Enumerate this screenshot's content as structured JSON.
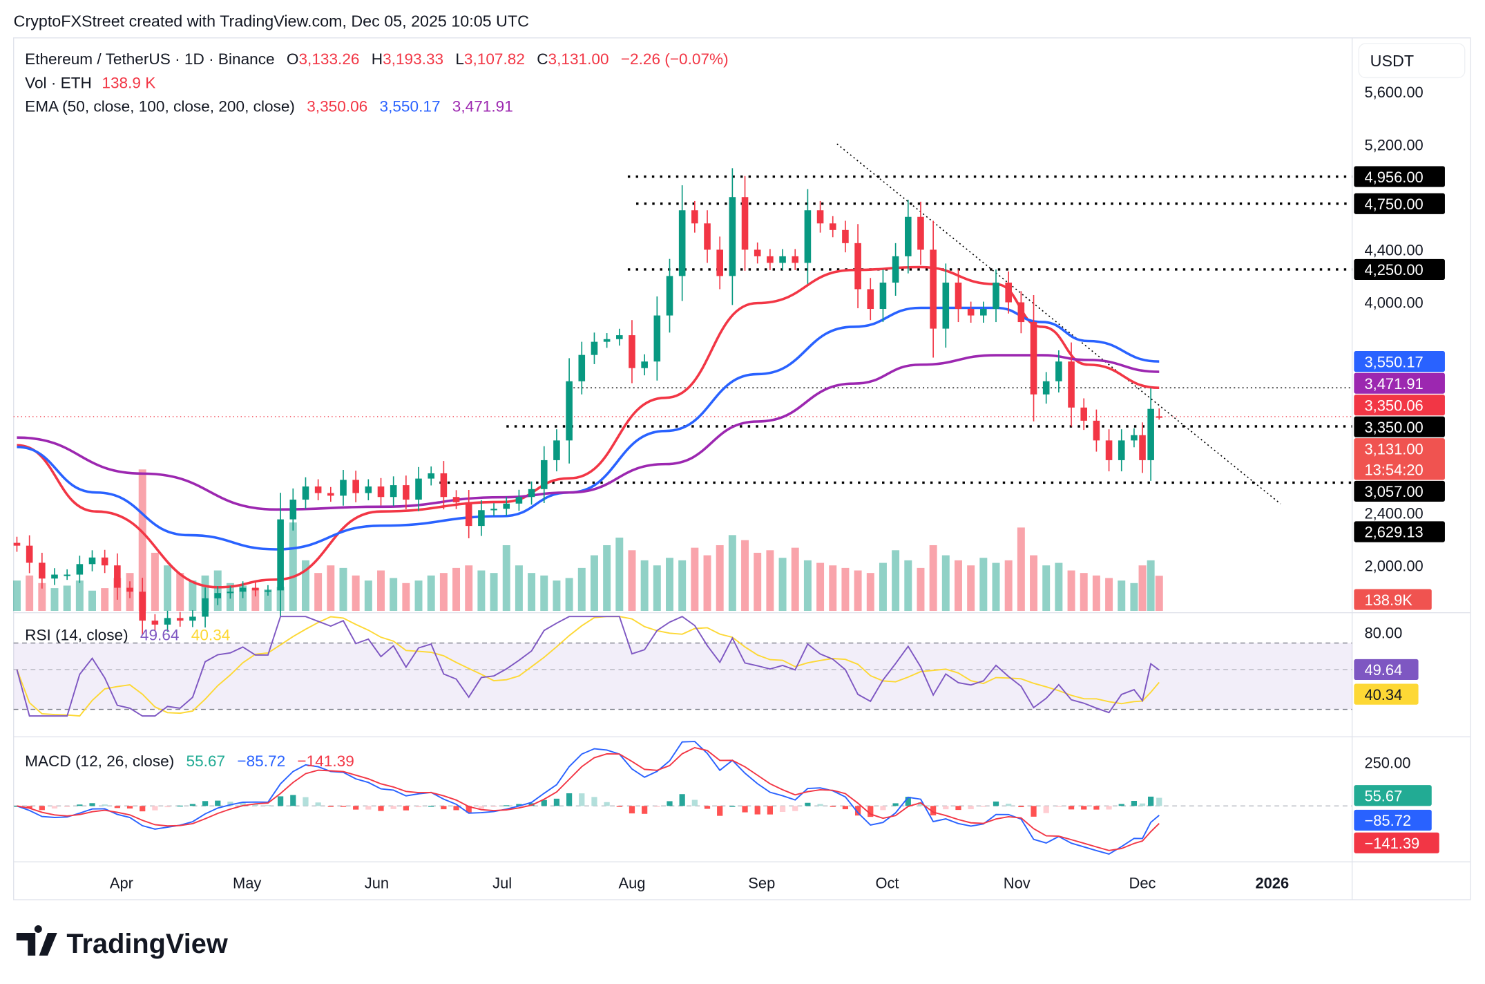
{
  "header": {
    "attribution": "CryptoFXStreet created with TradingView.com, Dec 05, 2025 10:05 UTC"
  },
  "legend": {
    "symbol": "Ethereum / TetherUS · 1D · Binance",
    "o_label": "O",
    "o": "3,133.26",
    "h_label": "H",
    "h": "3,193.33",
    "l_label": "L",
    "l": "3,107.82",
    "c_label": "C",
    "c": "3,131.00",
    "change": "−2.26 (−0.07%)",
    "vol_label": "Vol · ETH",
    "vol": "138.9 K",
    "ema_label": "EMA (50, close, 100, close, 200, close)",
    "ema50": "3,350.06",
    "ema100": "3,550.17",
    "ema200": "3,471.91",
    "rsi_label": "RSI (14, close)",
    "rsi": "49.64",
    "rsi_ma": "40.34",
    "macd_label": "MACD (12, 26, close)",
    "macd_hist": "55.67",
    "macd": "−85.72",
    "macd_signal": "−141.39"
  },
  "price_axis": {
    "currency": "USDT",
    "ticks": [
      "5,600.00",
      "5,200.00",
      "4,400.00",
      "4,000.00",
      "2,400.00",
      "2,000.00"
    ],
    "tick_values": [
      5600,
      5200,
      4400,
      4000,
      2400,
      2000
    ],
    "badges": [
      {
        "label": "4,956.00",
        "value": 4956,
        "color": "#000000"
      },
      {
        "label": "4,750.00",
        "value": 4750,
        "color": "#000000"
      },
      {
        "label": "4,250.00",
        "value": 4250,
        "color": "#000000"
      },
      {
        "label": "3,550.17",
        "value": 3550.17,
        "color": "#2962ff"
      },
      {
        "label": "3,471.91",
        "value": 3471.91,
        "color": "#9c27b0"
      },
      {
        "label": "3,350.06",
        "value": 3350.06,
        "color": "#f23645"
      },
      {
        "label": "3,350.00",
        "value": 3350,
        "color": "#000000"
      },
      {
        "label": "3,057.00",
        "value": 3057,
        "color": "#000000"
      },
      {
        "label": "2,629.13",
        "value": 2629.13,
        "color": "#000000"
      }
    ],
    "current_price": {
      "label": "3,131.00",
      "countdown": "13:54:20",
      "value": 3131,
      "color": "#f05350"
    },
    "volume_badge": "138.9K",
    "rsi_tick": "80.00",
    "rsi_badges": [
      {
        "label": "49.64",
        "color": "#7e57c2"
      },
      {
        "label": "40.34",
        "color": "#fdd835"
      }
    ],
    "macd_tick": "250.00",
    "macd_badges": [
      {
        "label": "55.67",
        "color": "#22ab94"
      },
      {
        "label": "−85.72",
        "color": "#2962ff"
      },
      {
        "label": "−141.39",
        "color": "#f23645"
      }
    ]
  },
  "time_axis": [
    {
      "label": "Apr",
      "date": "2025-04-01"
    },
    {
      "label": "May",
      "date": "2025-05-01"
    },
    {
      "label": "Jun",
      "date": "2025-06-01"
    },
    {
      "label": "Jul",
      "date": "2025-07-01"
    },
    {
      "label": "Aug",
      "date": "2025-08-01"
    },
    {
      "label": "Sep",
      "date": "2025-09-01"
    },
    {
      "label": "Oct",
      "date": "2025-10-01"
    },
    {
      "label": "Nov",
      "date": "2025-11-01"
    },
    {
      "label": "Dec",
      "date": "2025-12-01"
    },
    {
      "label": "2026",
      "date": "2026-01-01"
    }
  ],
  "brand": {
    "name": "TradingView"
  },
  "colors": {
    "up": "#089981",
    "down": "#f23645",
    "ema50": "#f23645",
    "ema100": "#2962ff",
    "ema200": "#9c27b0",
    "rsi": "#7e57c2",
    "rsi_ma": "#fdd835"
  },
  "chart_data": {
    "type": "candlestick",
    "yscale": "linear",
    "ylim": [
      1650,
      5700
    ],
    "candles_date_close_volK": [
      [
        "2025-03-07",
        2150,
        120
      ],
      [
        "2025-03-10",
        2020,
        140
      ],
      [
        "2025-03-13",
        1900,
        110
      ],
      [
        "2025-03-16",
        1930,
        90
      ],
      [
        "2025-03-19",
        1930,
        100
      ],
      [
        "2025-03-22",
        2010,
        120
      ],
      [
        "2025-03-25",
        2060,
        80
      ],
      [
        "2025-03-28",
        2000,
        90
      ],
      [
        "2025-03-31",
        1830,
        130
      ],
      [
        "2025-04-03",
        1800,
        150
      ],
      [
        "2025-04-06",
        1580,
        560
      ],
      [
        "2025-04-09",
        1550,
        230
      ],
      [
        "2025-04-12",
        1600,
        180
      ],
      [
        "2025-04-15",
        1580,
        150
      ],
      [
        "2025-04-18",
        1610,
        120
      ],
      [
        "2025-04-21",
        1750,
        140
      ],
      [
        "2025-04-24",
        1790,
        160
      ],
      [
        "2025-04-27",
        1800,
        110
      ],
      [
        "2025-04-30",
        1830,
        100
      ],
      [
        "2025-05-03",
        1810,
        90
      ],
      [
        "2025-05-06",
        1810,
        85
      ],
      [
        "2025-05-09",
        2350,
        95
      ],
      [
        "2025-05-12",
        2500,
        350
      ],
      [
        "2025-05-15",
        2600,
        200
      ],
      [
        "2025-05-18",
        2550,
        150
      ],
      [
        "2025-05-21",
        2530,
        180
      ],
      [
        "2025-05-24",
        2650,
        170
      ],
      [
        "2025-05-27",
        2550,
        140
      ],
      [
        "2025-05-30",
        2600,
        120
      ],
      [
        "2025-06-02",
        2520,
        160
      ],
      [
        "2025-06-05",
        2610,
        130
      ],
      [
        "2025-06-08",
        2500,
        110
      ],
      [
        "2025-06-11",
        2660,
        120
      ],
      [
        "2025-06-14",
        2700,
        140
      ],
      [
        "2025-06-17",
        2520,
        150
      ],
      [
        "2025-06-20",
        2480,
        170
      ],
      [
        "2025-06-23",
        2300,
        180
      ],
      [
        "2025-06-26",
        2420,
        160
      ],
      [
        "2025-06-29",
        2430,
        150
      ],
      [
        "2025-07-02",
        2470,
        260
      ],
      [
        "2025-07-05",
        2520,
        180
      ],
      [
        "2025-07-08",
        2580,
        150
      ],
      [
        "2025-07-11",
        2800,
        140
      ],
      [
        "2025-07-14",
        2950,
        120
      ],
      [
        "2025-07-17",
        3400,
        130
      ],
      [
        "2025-07-20",
        3600,
        170
      ],
      [
        "2025-07-23",
        3700,
        220
      ],
      [
        "2025-07-26",
        3720,
        260
      ],
      [
        "2025-07-29",
        3750,
        290
      ],
      [
        "2025-08-01",
        3500,
        240
      ],
      [
        "2025-08-04",
        3550,
        200
      ],
      [
        "2025-08-07",
        3900,
        180
      ],
      [
        "2025-08-10",
        4200,
        210
      ],
      [
        "2025-08-13",
        4700,
        200
      ],
      [
        "2025-08-16",
        4600,
        250
      ],
      [
        "2025-08-19",
        4400,
        220
      ],
      [
        "2025-08-22",
        4200,
        260
      ],
      [
        "2025-08-25",
        4800,
        300
      ],
      [
        "2025-08-28",
        4400,
        280
      ],
      [
        "2025-08-31",
        4350,
        230
      ],
      [
        "2025-09-03",
        4300,
        240
      ],
      [
        "2025-09-06",
        4350,
        210
      ],
      [
        "2025-09-09",
        4300,
        250
      ],
      [
        "2025-09-12",
        4700,
        200
      ],
      [
        "2025-09-15",
        4600,
        190
      ],
      [
        "2025-09-18",
        4550,
        180
      ],
      [
        "2025-09-21",
        4450,
        170
      ],
      [
        "2025-09-24",
        4100,
        160
      ],
      [
        "2025-09-27",
        3950,
        150
      ],
      [
        "2025-09-30",
        4150,
        190
      ],
      [
        "2025-10-03",
        4350,
        240
      ],
      [
        "2025-10-06",
        4650,
        200
      ],
      [
        "2025-10-09",
        4400,
        170
      ],
      [
        "2025-10-12",
        3800,
        260
      ],
      [
        "2025-10-15",
        4150,
        220
      ],
      [
        "2025-10-18",
        3950,
        200
      ],
      [
        "2025-10-21",
        3900,
        180
      ],
      [
        "2025-10-24",
        3950,
        210
      ],
      [
        "2025-10-27",
        4150,
        190
      ],
      [
        "2025-10-30",
        4000,
        200
      ],
      [
        "2025-11-02",
        3850,
        330
      ],
      [
        "2025-11-05",
        3300,
        220
      ],
      [
        "2025-11-08",
        3400,
        180
      ],
      [
        "2025-11-11",
        3550,
        190
      ],
      [
        "2025-11-14",
        3200,
        160
      ],
      [
        "2025-11-17",
        3100,
        150
      ],
      [
        "2025-11-20",
        2950,
        140
      ],
      [
        "2025-11-23",
        2800,
        130
      ],
      [
        "2025-11-26",
        2950,
        120
      ],
      [
        "2025-11-29",
        2990,
        110
      ],
      [
        "2025-12-01",
        2800,
        180
      ],
      [
        "2025-12-03",
        3190,
        200
      ],
      [
        "2025-12-05",
        3131,
        139
      ]
    ],
    "last_candle": {
      "open": 3133.26,
      "high": 3193.33,
      "low": 3107.82,
      "close": 3131.0
    },
    "ema_lines": [
      {
        "name": "EMA 50",
        "color": "#f23645",
        "points": [
          [
            "2025-03-07",
            2914
          ],
          [
            "2025-03-26",
            2410
          ],
          [
            "2025-04-24",
            1834
          ],
          [
            "2025-05-08",
            1892
          ],
          [
            "2025-06-02",
            2410
          ],
          [
            "2025-07-01",
            2482
          ],
          [
            "2025-07-17",
            2662
          ],
          [
            "2025-08-09",
            3274
          ],
          [
            "2025-08-31",
            3994
          ],
          [
            "2025-09-23",
            4246
          ],
          [
            "2025-10-09",
            4268
          ],
          [
            "2025-10-27",
            4138
          ],
          [
            "2025-11-07",
            3814
          ],
          [
            "2025-11-18",
            3526
          ],
          [
            "2025-12-05",
            3350.06
          ]
        ]
      },
      {
        "name": "EMA 100",
        "color": "#2962ff",
        "points": [
          [
            "2025-03-07",
            2900
          ],
          [
            "2025-03-26",
            2554
          ],
          [
            "2025-04-17",
            2230
          ],
          [
            "2025-05-08",
            2122
          ],
          [
            "2025-06-02",
            2302
          ],
          [
            "2025-07-01",
            2374
          ],
          [
            "2025-07-17",
            2554
          ],
          [
            "2025-08-09",
            3022
          ],
          [
            "2025-08-31",
            3454
          ],
          [
            "2025-09-23",
            3814
          ],
          [
            "2025-10-09",
            3958
          ],
          [
            "2025-10-27",
            3958
          ],
          [
            "2025-11-07",
            3850
          ],
          [
            "2025-11-18",
            3706
          ],
          [
            "2025-12-05",
            3550.17
          ]
        ]
      },
      {
        "name": "EMA 200",
        "color": "#9c27b0",
        "points": [
          [
            "2025-03-07",
            2972
          ],
          [
            "2025-04-06",
            2698
          ],
          [
            "2025-05-08",
            2425
          ],
          [
            "2025-06-02",
            2446
          ],
          [
            "2025-07-01",
            2518
          ],
          [
            "2025-07-17",
            2554
          ],
          [
            "2025-08-09",
            2770
          ],
          [
            "2025-08-31",
            3094
          ],
          [
            "2025-09-23",
            3382
          ],
          [
            "2025-10-09",
            3526
          ],
          [
            "2025-10-27",
            3598
          ],
          [
            "2025-11-07",
            3598
          ],
          [
            "2025-11-18",
            3562
          ],
          [
            "2025-12-05",
            3471.91
          ]
        ]
      }
    ],
    "horizontal_levels": [
      {
        "value": 4956,
        "from": "2025-07-31",
        "style": "dotted-bold"
      },
      {
        "value": 4750,
        "from": "2025-08-02",
        "style": "dotted-bold"
      },
      {
        "value": 4250,
        "from": "2025-07-31",
        "style": "dotted-bold"
      },
      {
        "value": 3350,
        "from": "2025-07-17",
        "style": "dotted-thin"
      },
      {
        "value": 3057,
        "from": "2025-07-02",
        "style": "dotted-bold"
      },
      {
        "value": 2629.13,
        "from": "2025-06-16",
        "style": "dotted-bold"
      }
    ],
    "trendline": {
      "from": [
        "2025-09-19",
        5204
      ],
      "to": [
        "2026-01-03",
        2468
      ],
      "style": "dotted"
    },
    "rsi": {
      "period": 14,
      "last": 49.64,
      "ma_last": 40.34,
      "levels": [
        70,
        50,
        30
      ],
      "ylim": [
        15,
        90
      ]
    },
    "macd": {
      "fast": 12,
      "slow": 26,
      "last_hist": 55.67,
      "last_macd": -85.72,
      "last_signal": -141.39
    }
  }
}
